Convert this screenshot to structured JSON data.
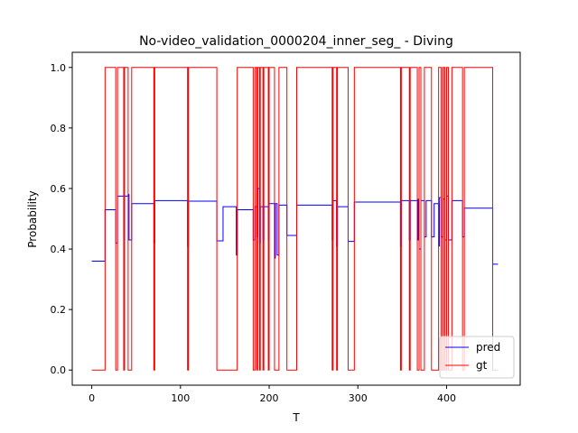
{
  "chart_data": {
    "type": "line",
    "title": "No-video_validation_0000204_inner_seg_ - Diving",
    "xlabel": "T",
    "ylabel": "Probability",
    "xlim": [
      -22,
      483
    ],
    "ylim": [
      -0.05,
      1.05
    ],
    "x_ticks": [
      0,
      100,
      200,
      300,
      400
    ],
    "x_tick_labels": [
      "0",
      "100",
      "200",
      "300",
      "400"
    ],
    "y_ticks": [
      0.0,
      0.2,
      0.4,
      0.6,
      0.8,
      1.0
    ],
    "y_tick_labels": [
      "0.0",
      "0.2",
      "0.4",
      "0.6",
      "0.8",
      "1.0"
    ],
    "grid": false,
    "legend": {
      "position": "bottom-right",
      "entries": [
        "pred",
        "gt"
      ]
    },
    "series": [
      {
        "name": "pred",
        "color": "#0000ff",
        "step": true,
        "points": [
          [
            0,
            0.36
          ],
          [
            15,
            0.36
          ],
          [
            15,
            0.53
          ],
          [
            27,
            0.53
          ],
          [
            27,
            0.42
          ],
          [
            29,
            0.42
          ],
          [
            29,
            0.575
          ],
          [
            36,
            0.575
          ],
          [
            36,
            0.43
          ],
          [
            37,
            0.43
          ],
          [
            37,
            0.575
          ],
          [
            41,
            0.575
          ],
          [
            41,
            0.58
          ],
          [
            42,
            0.58
          ],
          [
            42,
            0.43
          ],
          [
            45,
            0.43
          ],
          [
            45,
            0.55
          ],
          [
            70,
            0.55
          ],
          [
            70,
            0.42
          ],
          [
            71,
            0.42
          ],
          [
            71,
            0.56
          ],
          [
            108,
            0.56
          ],
          [
            108,
            0.41
          ],
          [
            109,
            0.41
          ],
          [
            109,
            0.558
          ],
          [
            141,
            0.558
          ],
          [
            141,
            0.427
          ],
          [
            148,
            0.427
          ],
          [
            148,
            0.54
          ],
          [
            163,
            0.54
          ],
          [
            163,
            0.38
          ],
          [
            164,
            0.38
          ],
          [
            164,
            0.53
          ],
          [
            182,
            0.53
          ],
          [
            182,
            0.43
          ],
          [
            184,
            0.43
          ],
          [
            184,
            0.54
          ],
          [
            186,
            0.54
          ],
          [
            186,
            0.44
          ],
          [
            187,
            0.44
          ],
          [
            187,
            0.6
          ],
          [
            189,
            0.6
          ],
          [
            189,
            0.42
          ],
          [
            190,
            0.42
          ],
          [
            190,
            0.54
          ],
          [
            193,
            0.54
          ],
          [
            193,
            0.43
          ],
          [
            194,
            0.43
          ],
          [
            194,
            0.54
          ],
          [
            199,
            0.54
          ],
          [
            199,
            0.43
          ],
          [
            200,
            0.43
          ],
          [
            200,
            0.55
          ],
          [
            206,
            0.55
          ],
          [
            206,
            0.37
          ],
          [
            207,
            0.37
          ],
          [
            207,
            0.55
          ],
          [
            209,
            0.55
          ],
          [
            209,
            0.38
          ],
          [
            211,
            0.38
          ],
          [
            211,
            0.545
          ],
          [
            220,
            0.545
          ],
          [
            220,
            0.445
          ],
          [
            231,
            0.445
          ],
          [
            231,
            0.545
          ],
          [
            271,
            0.545
          ],
          [
            271,
            0.43
          ],
          [
            272,
            0.43
          ],
          [
            272,
            0.56
          ],
          [
            276,
            0.56
          ],
          [
            276,
            0.41
          ],
          [
            277,
            0.41
          ],
          [
            277,
            0.54
          ],
          [
            289,
            0.54
          ],
          [
            289,
            0.425
          ],
          [
            296,
            0.425
          ],
          [
            296,
            0.555
          ],
          [
            348,
            0.555
          ],
          [
            348,
            0.41
          ],
          [
            349,
            0.41
          ],
          [
            349,
            0.56
          ],
          [
            358,
            0.56
          ],
          [
            358,
            0.43
          ],
          [
            359,
            0.43
          ],
          [
            359,
            0.56
          ],
          [
            367,
            0.56
          ],
          [
            367,
            0.43
          ],
          [
            368,
            0.43
          ],
          [
            368,
            0.565
          ],
          [
            369,
            0.565
          ],
          [
            369,
            0.4
          ],
          [
            371,
            0.4
          ],
          [
            371,
            0.56
          ],
          [
            375,
            0.56
          ],
          [
            375,
            0.44
          ],
          [
            377,
            0.44
          ],
          [
            377,
            0.56
          ],
          [
            383,
            0.56
          ],
          [
            383,
            0.44
          ],
          [
            386,
            0.44
          ],
          [
            386,
            0.55
          ],
          [
            391,
            0.55
          ],
          [
            391,
            0.41
          ],
          [
            392,
            0.41
          ],
          [
            392,
            0.57
          ],
          [
            394,
            0.57
          ],
          [
            394,
            0.44
          ],
          [
            396,
            0.44
          ],
          [
            396,
            0.565
          ],
          [
            398,
            0.565
          ],
          [
            398,
            0.43
          ],
          [
            400,
            0.43
          ],
          [
            400,
            0.575
          ],
          [
            402,
            0.575
          ],
          [
            402,
            0.43
          ],
          [
            406,
            0.43
          ],
          [
            406,
            0.56
          ],
          [
            418,
            0.56
          ],
          [
            418,
            0.44
          ],
          [
            420,
            0.44
          ],
          [
            420,
            0.535
          ],
          [
            452,
            0.535
          ],
          [
            452,
            0.35
          ],
          [
            458,
            0.35
          ]
        ]
      },
      {
        "name": "gt",
        "color": "#ff0000",
        "step": true,
        "points": [
          [
            0,
            0
          ],
          [
            15,
            0
          ],
          [
            15,
            1
          ],
          [
            27,
            1
          ],
          [
            27,
            0
          ],
          [
            29,
            0
          ],
          [
            29,
            1
          ],
          [
            36,
            1
          ],
          [
            36,
            0
          ],
          [
            37,
            0
          ],
          [
            37,
            1
          ],
          [
            41,
            1
          ],
          [
            41,
            0
          ],
          [
            45,
            0
          ],
          [
            45,
            1
          ],
          [
            70,
            1
          ],
          [
            70,
            0
          ],
          [
            71,
            0
          ],
          [
            71,
            1
          ],
          [
            108,
            1
          ],
          [
            108,
            0
          ],
          [
            109,
            0
          ],
          [
            109,
            1
          ],
          [
            141,
            1
          ],
          [
            141,
            0
          ],
          [
            164,
            0
          ],
          [
            164,
            1
          ],
          [
            182,
            1
          ],
          [
            182,
            0
          ],
          [
            184,
            0
          ],
          [
            184,
            1
          ],
          [
            186,
            1
          ],
          [
            186,
            0
          ],
          [
            187,
            0
          ],
          [
            187,
            1
          ],
          [
            189,
            1
          ],
          [
            189,
            0
          ],
          [
            190,
            0
          ],
          [
            190,
            1
          ],
          [
            193,
            1
          ],
          [
            193,
            0
          ],
          [
            194,
            0
          ],
          [
            194,
            1
          ],
          [
            199,
            1
          ],
          [
            199,
            0
          ],
          [
            200,
            0
          ],
          [
            200,
            1
          ],
          [
            206,
            1
          ],
          [
            206,
            0
          ],
          [
            211,
            0
          ],
          [
            211,
            1
          ],
          [
            220,
            1
          ],
          [
            220,
            0
          ],
          [
            231,
            0
          ],
          [
            231,
            1
          ],
          [
            271,
            1
          ],
          [
            271,
            0
          ],
          [
            272,
            0
          ],
          [
            272,
            1
          ],
          [
            276,
            1
          ],
          [
            276,
            0
          ],
          [
            277,
            0
          ],
          [
            277,
            1
          ],
          [
            289,
            1
          ],
          [
            289,
            0
          ],
          [
            296,
            0
          ],
          [
            296,
            1
          ],
          [
            348,
            1
          ],
          [
            348,
            0
          ],
          [
            349,
            0
          ],
          [
            349,
            1
          ],
          [
            358,
            1
          ],
          [
            358,
            0
          ],
          [
            359,
            0
          ],
          [
            359,
            1
          ],
          [
            367,
            1
          ],
          [
            367,
            0
          ],
          [
            369,
            0
          ],
          [
            369,
            1
          ],
          [
            371,
            1
          ],
          [
            371,
            0
          ],
          [
            375,
            0
          ],
          [
            375,
            1
          ],
          [
            383,
            1
          ],
          [
            383,
            0
          ],
          [
            391,
            0
          ],
          [
            391,
            1
          ],
          [
            394,
            1
          ],
          [
            394,
            0
          ],
          [
            396,
            0
          ],
          [
            396,
            1
          ],
          [
            398,
            1
          ],
          [
            398,
            0
          ],
          [
            400,
            0
          ],
          [
            400,
            1
          ],
          [
            402,
            1
          ],
          [
            402,
            0
          ],
          [
            406,
            0
          ],
          [
            406,
            1
          ],
          [
            418,
            1
          ],
          [
            418,
            0
          ],
          [
            420,
            0
          ],
          [
            420,
            1
          ],
          [
            452,
            1
          ],
          [
            452,
            0
          ],
          [
            458,
            0
          ]
        ]
      }
    ]
  }
}
